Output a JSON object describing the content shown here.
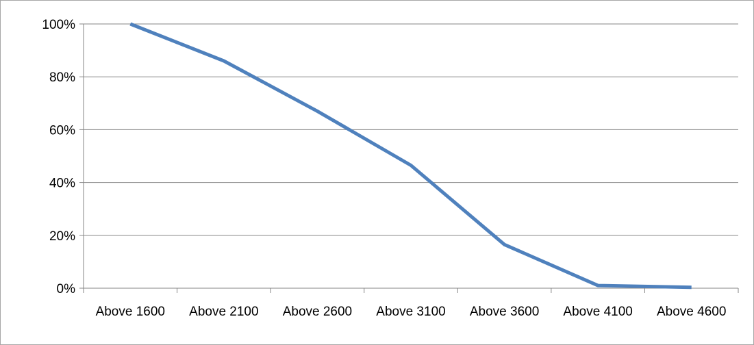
{
  "chart_data": {
    "type": "line",
    "title": "",
    "xlabel": "",
    "ylabel": "",
    "categories": [
      "Above 1600",
      "Above 2100",
      "Above 2600",
      "Above 3100",
      "Above 3600",
      "Above 4100",
      "Above 4600"
    ],
    "series": [
      {
        "values": [
          100,
          86,
          67,
          46.5,
          16.5,
          1,
          0.3
        ]
      }
    ],
    "ylim": [
      0,
      100
    ],
    "y_ticks": [
      "0%",
      "20%",
      "40%",
      "60%",
      "80%",
      "100%"
    ],
    "grid": true,
    "legend": "none",
    "colors": {
      "line": "#4f81bd",
      "grid": "#868686",
      "axis": "#868686"
    }
  }
}
